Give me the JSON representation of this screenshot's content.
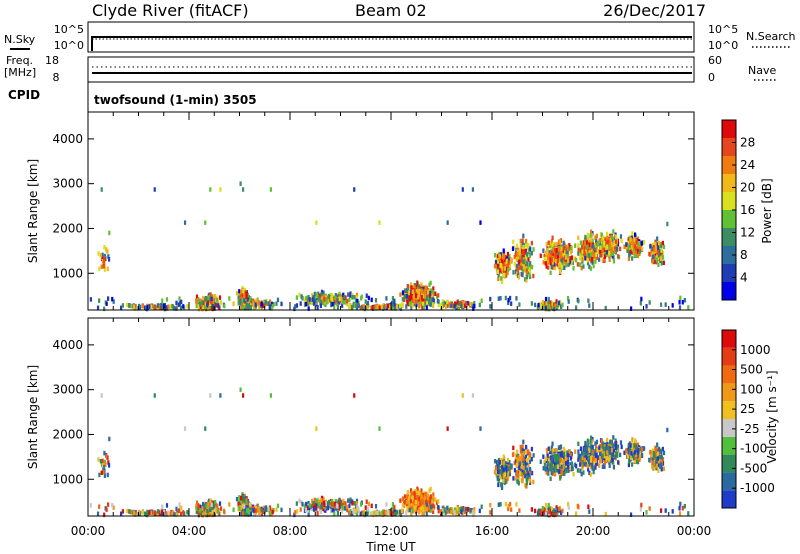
{
  "header": {
    "station": "Clyde River (fitACF)",
    "beam": "Beam 02",
    "date": "26/Dec/2017"
  },
  "strips": {
    "nsky_label": "N.Sky",
    "nsearch_label": "N.Search",
    "noise_ticks_left": [
      "10^5",
      "10^0"
    ],
    "noise_ticks_right": [
      "10^5",
      "10^0"
    ],
    "freq_label_1": "Freq.",
    "freq_label_2": "[MHz]",
    "freq_ticks": [
      "18",
      "8"
    ],
    "nave_label": "Nave",
    "nave_ticks": [
      "60",
      "0"
    ],
    "cpid_label": "CPID",
    "cpid_text": "twofsound (1-min) 3505"
  },
  "chart_data": [
    {
      "type": "heatmap",
      "name": "power",
      "ylabel": "Slant Range [km]",
      "ylim": [
        180,
        4600
      ],
      "yticks": [
        "1000",
        "2000",
        "3000",
        "4000"
      ],
      "xlim": [
        0,
        24
      ],
      "colorbar": {
        "label": "Power [dB]",
        "ticks": [
          "4",
          "8",
          "12",
          "16",
          "20",
          "24",
          "28"
        ],
        "colors": [
          "#0000e6",
          "#1e3cb4",
          "#2e6e9c",
          "#3c8c64",
          "#62c034",
          "#d8e020",
          "#f0b818",
          "#f07c10",
          "#e6461e",
          "#dc0a0a"
        ]
      }
    },
    {
      "type": "heatmap",
      "name": "velocity",
      "ylabel": "Slant Range [km]",
      "ylim": [
        180,
        4600
      ],
      "yticks": [
        "1000",
        "2000",
        "3000",
        "4000"
      ],
      "xlim": [
        0,
        24
      ],
      "xlabel": "Time UT",
      "xticks": [
        "00:00",
        "04:00",
        "08:00",
        "12:00",
        "16:00",
        "20:00",
        "00:00"
      ],
      "colorbar": {
        "label": "Velocity [m s⁻¹]",
        "ticks": [
          "1000",
          "500",
          "100",
          "25",
          "-25",
          "-100",
          "-500",
          "-1000"
        ],
        "colors": [
          "#1f3cc8",
          "#2a6aa0",
          "#328a5a",
          "#52c03c",
          "#c8c8c8",
          "#f0c020",
          "#f09818",
          "#f06a10",
          "#e63c14",
          "#dc0a0a"
        ]
      }
    }
  ]
}
